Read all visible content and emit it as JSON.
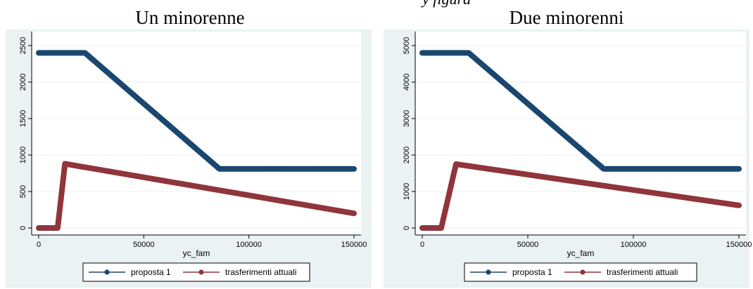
{
  "header_fragment": "y figura",
  "chart_data": [
    {
      "type": "line",
      "title": "Un minorenne",
      "xlabel": "yc_fam",
      "ylabel": "",
      "xlim": [
        0,
        150000
      ],
      "ylim": [
        0,
        2500
      ],
      "xticks": [
        0,
        50000,
        100000,
        150000
      ],
      "yticks": [
        0,
        500,
        1000,
        1500,
        2000,
        2500
      ],
      "grid": true,
      "legend_position": "bottom",
      "series": [
        {
          "name": "proposta 1",
          "color": "#1a476f",
          "points": [
            [
              0,
              2400
            ],
            [
              22000,
              2400
            ],
            [
              86000,
              810
            ],
            [
              150000,
              810
            ]
          ]
        },
        {
          "name": "trasferimenti attuali",
          "color": "#90353b",
          "points": [
            [
              0,
              0
            ],
            [
              9000,
              0
            ],
            [
              12500,
              880
            ],
            [
              150000,
              200
            ]
          ]
        }
      ]
    },
    {
      "type": "line",
      "title": "Due minorenni",
      "xlabel": "yc_fam",
      "ylabel": "",
      "xlim": [
        0,
        150000
      ],
      "ylim": [
        0,
        5000
      ],
      "xticks": [
        0,
        50000,
        100000,
        150000
      ],
      "yticks": [
        0,
        1000,
        2000,
        3000,
        4000,
        5000
      ],
      "grid": true,
      "legend_position": "bottom",
      "series": [
        {
          "name": "proposta 1",
          "color": "#1a476f",
          "points": [
            [
              0,
              4800
            ],
            [
              22000,
              4800
            ],
            [
              86000,
              1620
            ],
            [
              150000,
              1620
            ]
          ]
        },
        {
          "name": "trasferimenti attuali",
          "color": "#90353b",
          "points": [
            [
              0,
              0
            ],
            [
              9000,
              0
            ],
            [
              16000,
              1750
            ],
            [
              150000,
              620
            ]
          ]
        }
      ]
    }
  ]
}
